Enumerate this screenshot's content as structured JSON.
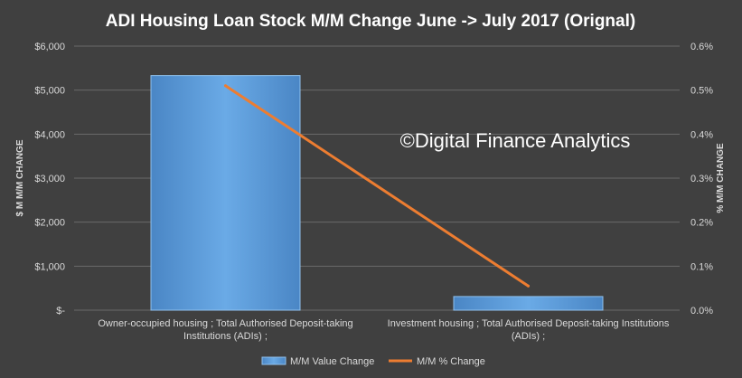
{
  "chart_data": {
    "type": "bar",
    "title": "ADI Housing Loan Stock M/M Change June -> July 2017 (Orignal)",
    "watermark": "©Digital Finance Analytics",
    "categories": [
      [
        "Owner-occupied housing ;  Total Authorised Deposit-taking",
        "Institutions (ADIs) ;"
      ],
      [
        "Investment housing ;  Total Authorised Deposit-taking Institutions",
        "(ADIs) ;"
      ]
    ],
    "y_left": {
      "label": "$ M M/M CHANGE",
      "ticks": [
        "$-",
        "$1,000",
        "$2,000",
        "$3,000",
        "$4,000",
        "$5,000",
        "$6,000"
      ],
      "lim": [
        0,
        6000
      ]
    },
    "y_right": {
      "label": "% M/M CHANGE",
      "ticks": [
        "0.0%",
        "0.1%",
        "0.2%",
        "0.3%",
        "0.4%",
        "0.5%",
        "0.6%"
      ],
      "lim": [
        0,
        0.6
      ]
    },
    "series": [
      {
        "name": "M/M Value Change",
        "type": "bar",
        "axis": "left",
        "values": [
          5330,
          310
        ],
        "color": "#5b9bd5"
      },
      {
        "name": "M/M % Change",
        "type": "line",
        "axis": "right",
        "values": [
          0.51,
          0.055
        ],
        "color": "#ed7d31"
      }
    ],
    "grid": true,
    "legend_position": "bottom"
  }
}
